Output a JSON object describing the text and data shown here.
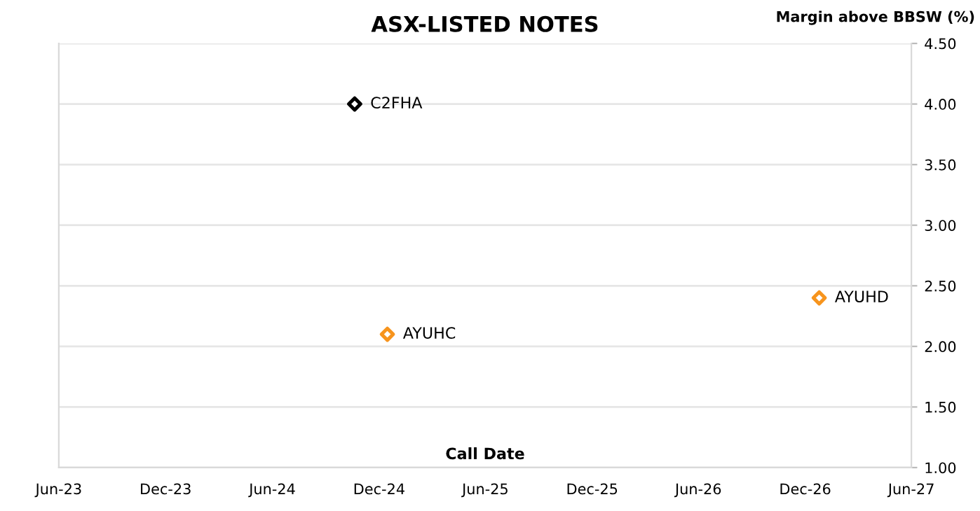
{
  "chart_data": {
    "type": "scatter",
    "title": "ASX-LISTED NOTES",
    "xlabel": "Call Date",
    "ylabel": "Margin above BBSW (%)",
    "series": [
      {
        "name": "C2FHA",
        "color": "#000000",
        "x": [
          "2024-10-20"
        ],
        "values": [
          4.0
        ]
      },
      {
        "name": "AYUHC",
        "color": "#f7941d",
        "x": [
          "2024-12-15"
        ],
        "values": [
          2.1
        ]
      },
      {
        "name": "AYUHD",
        "color": "#f7941d",
        "x": [
          "2026-12-25"
        ],
        "values": [
          2.4
        ]
      }
    ],
    "xlim": [
      "2023-06-01",
      "2027-06-01"
    ],
    "xticks": [
      {
        "value": "2023-06-01",
        "label": "Jun-23"
      },
      {
        "value": "2023-12-01",
        "label": "Dec-23"
      },
      {
        "value": "2024-06-01",
        "label": "Jun-24"
      },
      {
        "value": "2024-12-01",
        "label": "Dec-24"
      },
      {
        "value": "2025-06-01",
        "label": "Jun-25"
      },
      {
        "value": "2025-12-01",
        "label": "Dec-25"
      },
      {
        "value": "2026-06-01",
        "label": "Jun-26"
      },
      {
        "value": "2026-12-01",
        "label": "Dec-26"
      },
      {
        "value": "2027-06-01",
        "label": "Jun-27"
      }
    ],
    "ylim": [
      1.0,
      4.5
    ],
    "yticks": [
      {
        "value": 1.0,
        "label": "1.00"
      },
      {
        "value": 1.5,
        "label": "1.50"
      },
      {
        "value": 2.0,
        "label": "2.00"
      },
      {
        "value": 2.5,
        "label": "2.50"
      },
      {
        "value": 3.0,
        "label": "3.00"
      },
      {
        "value": 3.5,
        "label": "3.50"
      },
      {
        "value": 4.0,
        "label": "4.00"
      },
      {
        "value": 4.5,
        "label": "4.50"
      }
    ],
    "grid": "y",
    "legend": false,
    "marker": "diamond"
  }
}
